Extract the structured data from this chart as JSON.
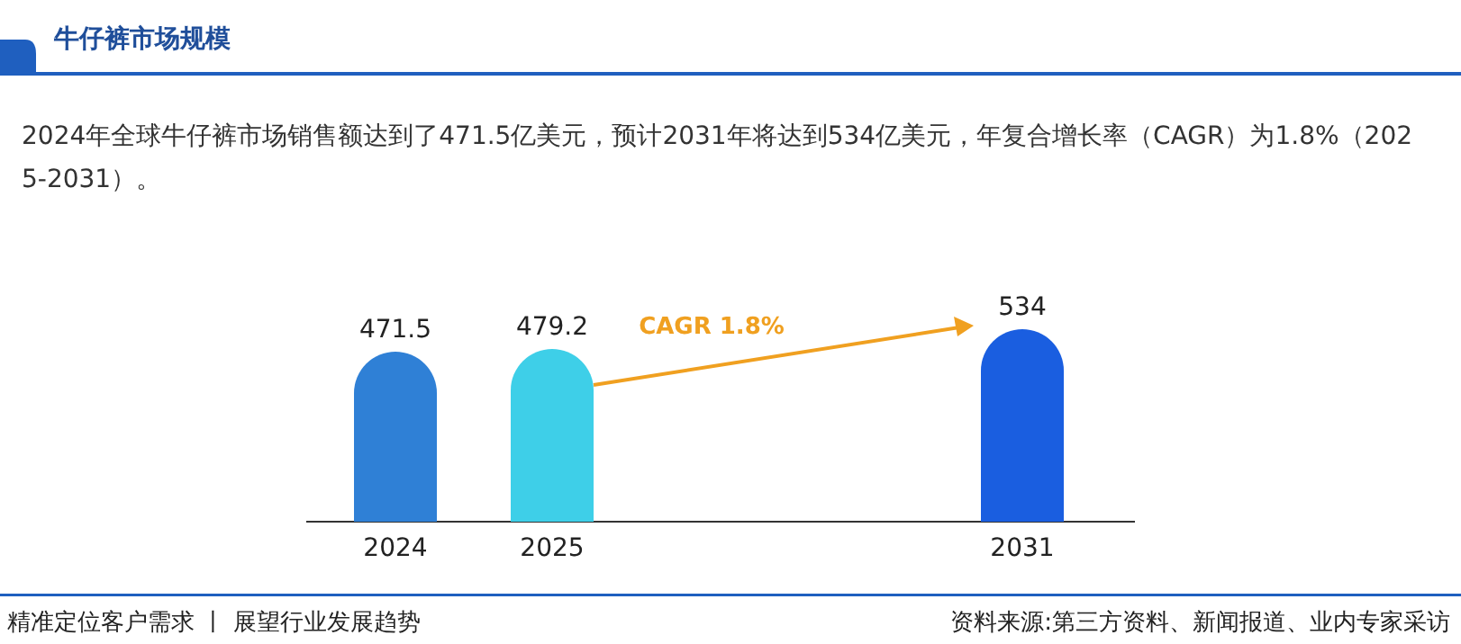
{
  "chart_data": {
    "type": "bar",
    "title": "牛仔裤市场规模",
    "subtitle": "2024年全球牛仔裤市场销售额达到了471.5亿美元，预计2031年将达到534亿美元，年复合增长率（CAGR）为1.8%（2025-2031）。",
    "categories": [
      "2024",
      "2025",
      null,
      null,
      "2031"
    ],
    "values": [
      471.5,
      479.2,
      null,
      null,
      534
    ],
    "colors": [
      "#2f80d6",
      "#3ecfe8",
      null,
      null,
      "#1a5ee0"
    ],
    "data_labels": true,
    "annotations": [
      "CAGR 1.8%",
      "精准定位客户需求 丨 展望行业发展趋势",
      "资料来源:第三方资料、新闻报道、业内专家采访"
    ]
  }
}
